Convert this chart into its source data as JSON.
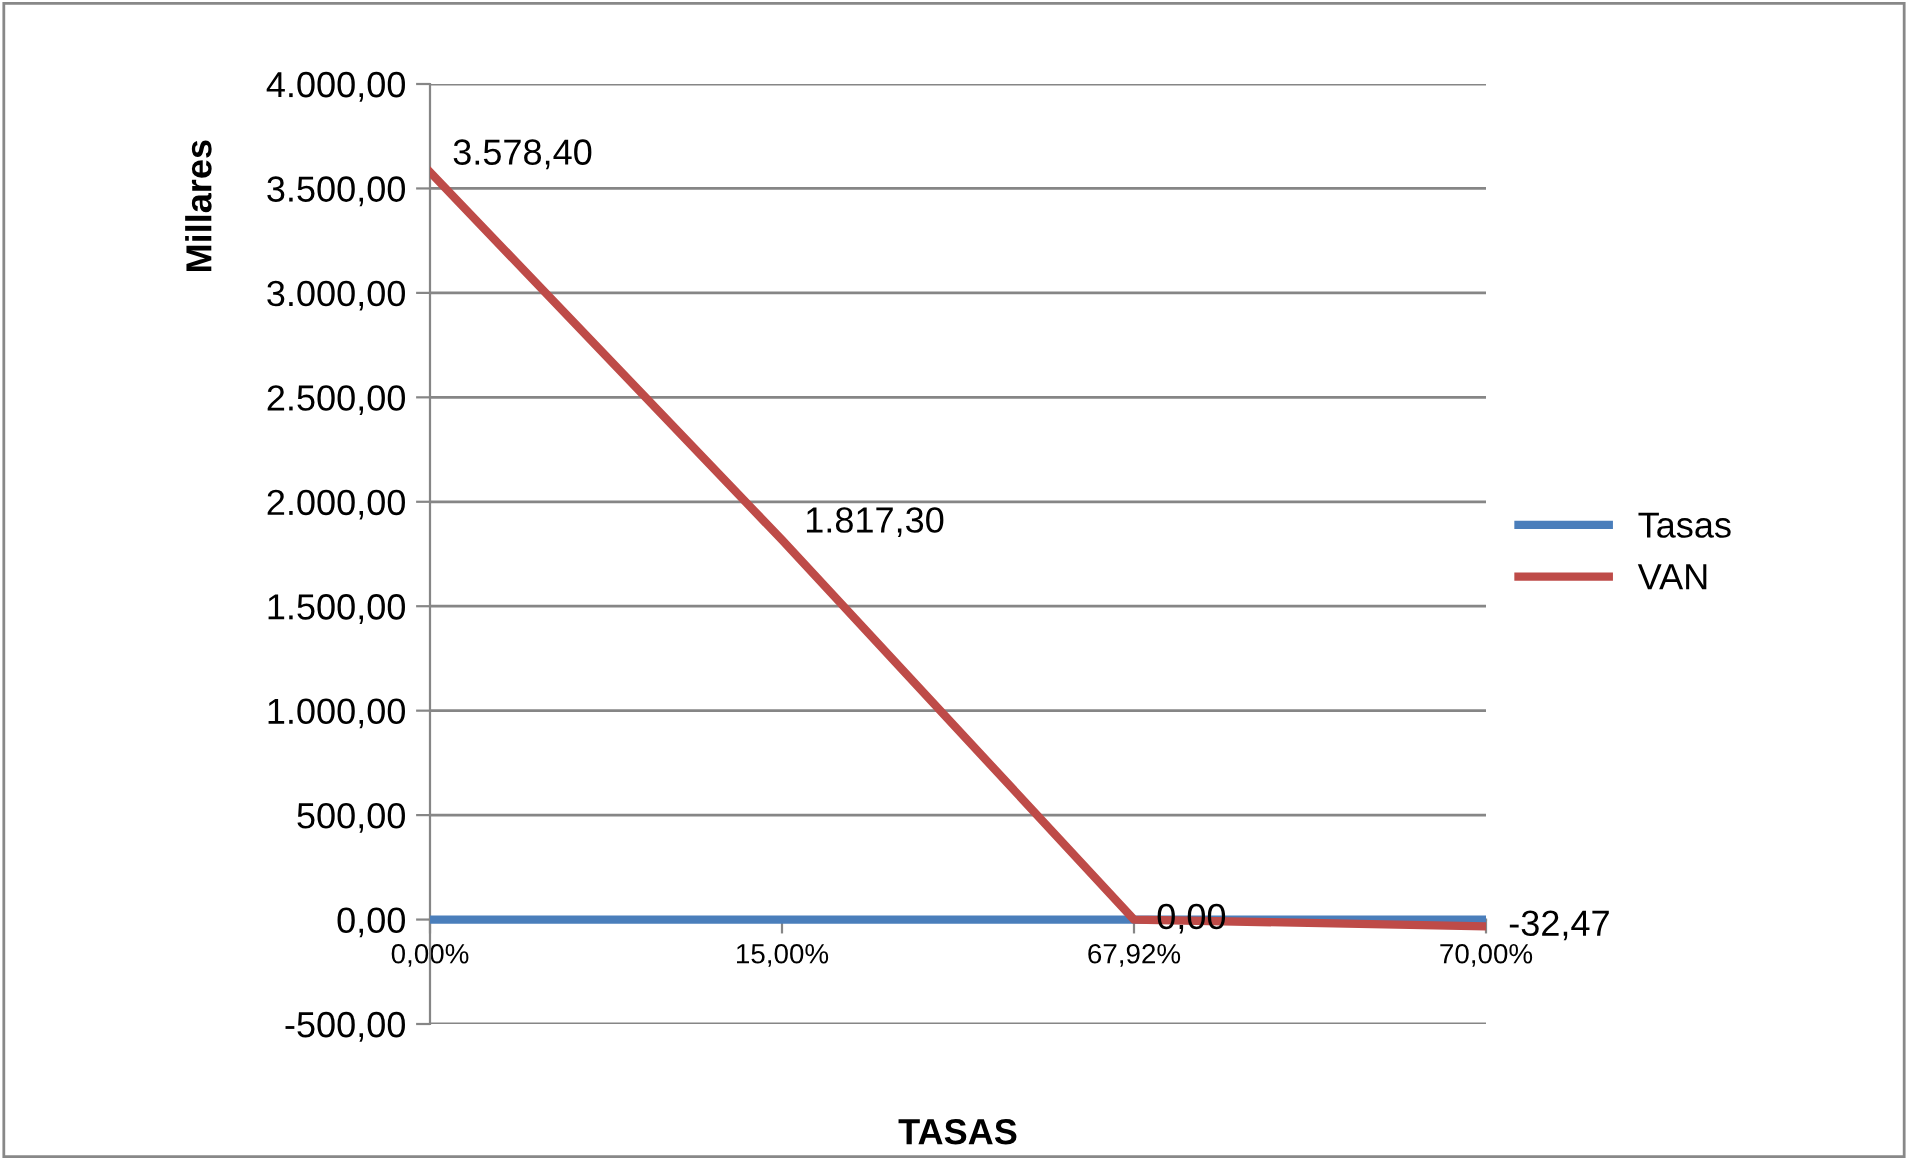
{
  "chart_data": {
    "type": "line",
    "xlabel": "TASAS",
    "ylabel": "Millares",
    "categories": [
      "0,00%",
      "15,00%",
      "67,92%",
      "70,00%"
    ],
    "series": [
      {
        "name": "Tasas",
        "color": "#4a7ebb",
        "values": [
          0,
          0,
          0,
          0
        ]
      },
      {
        "name": "VAN",
        "color": "#be4b48",
        "values": [
          3578.4,
          1817.3,
          0.0,
          -32.47
        ],
        "value_labels": [
          "3.578,40",
          "1.817,30",
          "0,00",
          "-32,47"
        ]
      }
    ],
    "ylim": [
      -500,
      4000
    ],
    "yticks": [
      {
        "value": -500,
        "label": "-500,00"
      },
      {
        "value": 0,
        "label": "0,00"
      },
      {
        "value": 500,
        "label": "500,00"
      },
      {
        "value": 1000,
        "label": "1.000,00"
      },
      {
        "value": 1500,
        "label": "1.500,00"
      },
      {
        "value": 2000,
        "label": "2.000,00"
      },
      {
        "value": 2500,
        "label": "2.500,00"
      },
      {
        "value": 3000,
        "label": "3.000,00"
      },
      {
        "value": 3500,
        "label": "3.500,00"
      },
      {
        "value": 4000,
        "label": "4.000,00"
      }
    ],
    "grid": "y",
    "legend": "right",
    "marker": "none",
    "line_style": "solid"
  }
}
